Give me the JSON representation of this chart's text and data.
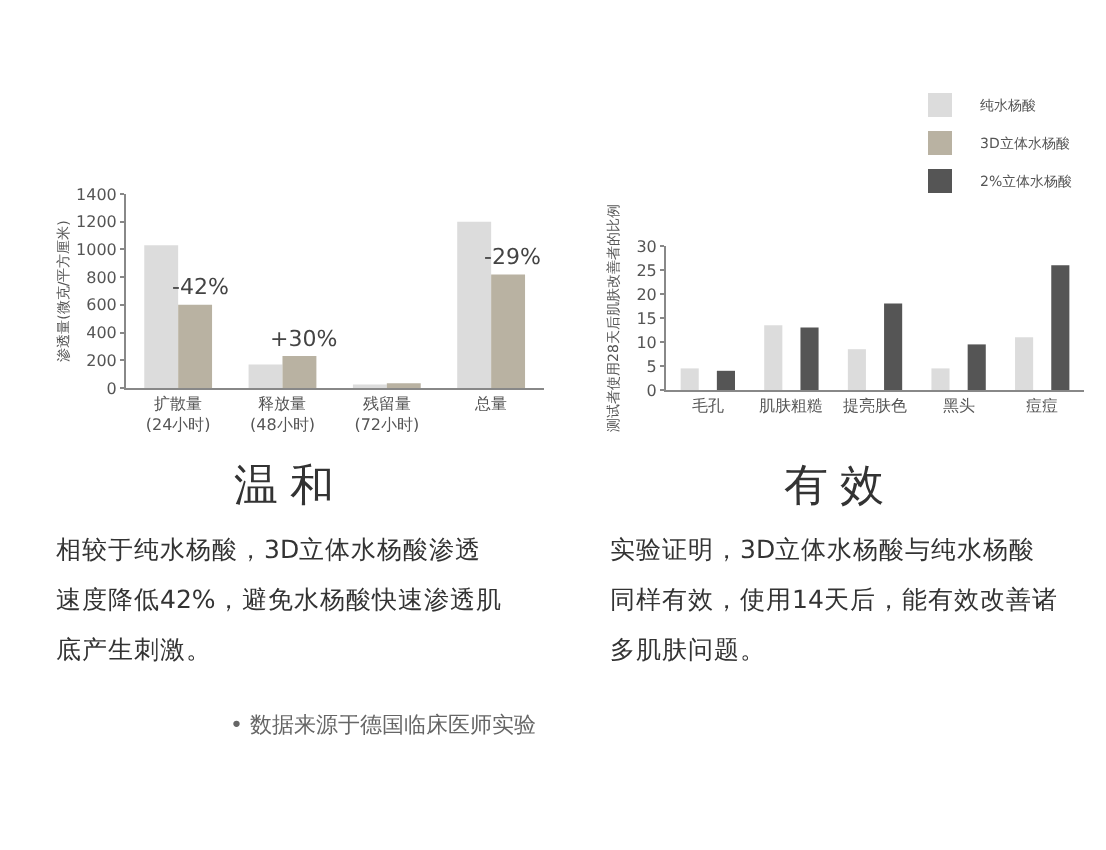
{
  "chart_data": [
    {
      "type": "bar",
      "ylabel": "渗透量(微克/平方厘米)",
      "categories": [
        "扩散量\n(24小时)",
        "释放量\n(48小时)",
        "残留量\n(72小时)",
        "总量"
      ],
      "series": [
        {
          "name": null,
          "color": "#dcdcdc",
          "values": [
            1030,
            170,
            25,
            1200
          ]
        },
        {
          "name": null,
          "color": "#b9b2a2",
          "values": [
            600,
            230,
            35,
            820
          ]
        }
      ],
      "ylim": [
        0,
        1400
      ],
      "yticks": [
        0,
        200,
        400,
        600,
        800,
        1000,
        1200,
        1400
      ],
      "grid": false,
      "legend": false,
      "annotations": [
        {
          "text": "-42%",
          "x": "扩散量\n(24小时)",
          "y": 600
        },
        {
          "text": "+30%",
          "x": "释放量\n(48小时)",
          "y": 230
        },
        {
          "text": "-29%",
          "x": "总量",
          "y": 820
        },
        "温和",
        "相较于纯水杨酸，3D立体水杨酸渗透速度降低42%，避免水杨酸快速渗透肌底产生刺激。",
        "• 数据来源于德国临床医师实验"
      ]
    },
    {
      "type": "bar",
      "ylabel": "测试者使用28天后肌肤改善者的比例",
      "categories": [
        "毛孔",
        "肌肤粗糙",
        "提亮肤色",
        "黑头",
        "痘痘"
      ],
      "series": [
        {
          "name": "纯水杨酸",
          "color": "#dcdcdc",
          "values": [
            4.5,
            13.5,
            8.5,
            4.5,
            11
          ]
        },
        {
          "name": "3D立体水杨酸",
          "color": "#b9b2a2",
          "values": [
            null,
            null,
            null,
            null,
            null
          ]
        },
        {
          "name": "2%立体水杨酸",
          "color": "#555555",
          "values": [
            4,
            13,
            18,
            9.5,
            26
          ]
        }
      ],
      "ylim": [
        0,
        30
      ],
      "yticks": [
        0,
        5,
        10,
        15,
        20,
        25,
        30
      ],
      "grid": false,
      "legend": "top right",
      "annotations": [
        "有效",
        "实验证明，3D立体水杨酸与纯水杨酸同样有效，使用14天后，能有效改善诸多肌肤问题。"
      ]
    }
  ]
}
